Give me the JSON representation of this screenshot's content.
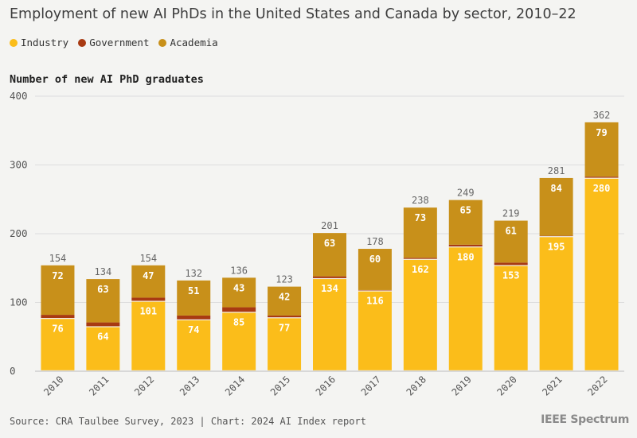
{
  "chart_data": {
    "type": "bar",
    "stacked": true,
    "title": "Employment of new AI PhDs in the United States and Canada by sector, 2010–22",
    "ylabel": "Number of new AI PhD graduates",
    "xlabel": "",
    "ylim": [
      0,
      400
    ],
    "yticks": [
      0,
      100,
      200,
      300,
      400
    ],
    "grid": true,
    "legend_position": "top-left",
    "categories": [
      "2010",
      "2011",
      "2012",
      "2013",
      "2014",
      "2015",
      "2016",
      "2017",
      "2018",
      "2019",
      "2020",
      "2021",
      "2022"
    ],
    "series": [
      {
        "name": "Industry",
        "color": "#fbbd1a",
        "values": [
          76,
          64,
          101,
          74,
          85,
          77,
          134,
          116,
          162,
          180,
          153,
          195,
          280
        ]
      },
      {
        "name": "Government",
        "color": "#a83a12",
        "values": [
          6,
          7,
          6,
          7,
          8,
          4,
          4,
          2,
          3,
          4,
          5,
          2,
          3
        ]
      },
      {
        "name": "Academia",
        "color": "#c8901a",
        "values": [
          72,
          63,
          47,
          51,
          43,
          42,
          63,
          60,
          73,
          65,
          61,
          84,
          79
        ]
      }
    ],
    "totals": [
      154,
      134,
      154,
      132,
      136,
      123,
      201,
      178,
      238,
      249,
      219,
      281,
      362
    ]
  },
  "source": "Source: CRA Taulbee Survey, 2023 | Chart: 2024 AI Index report",
  "brand": "IEEE Spectrum"
}
